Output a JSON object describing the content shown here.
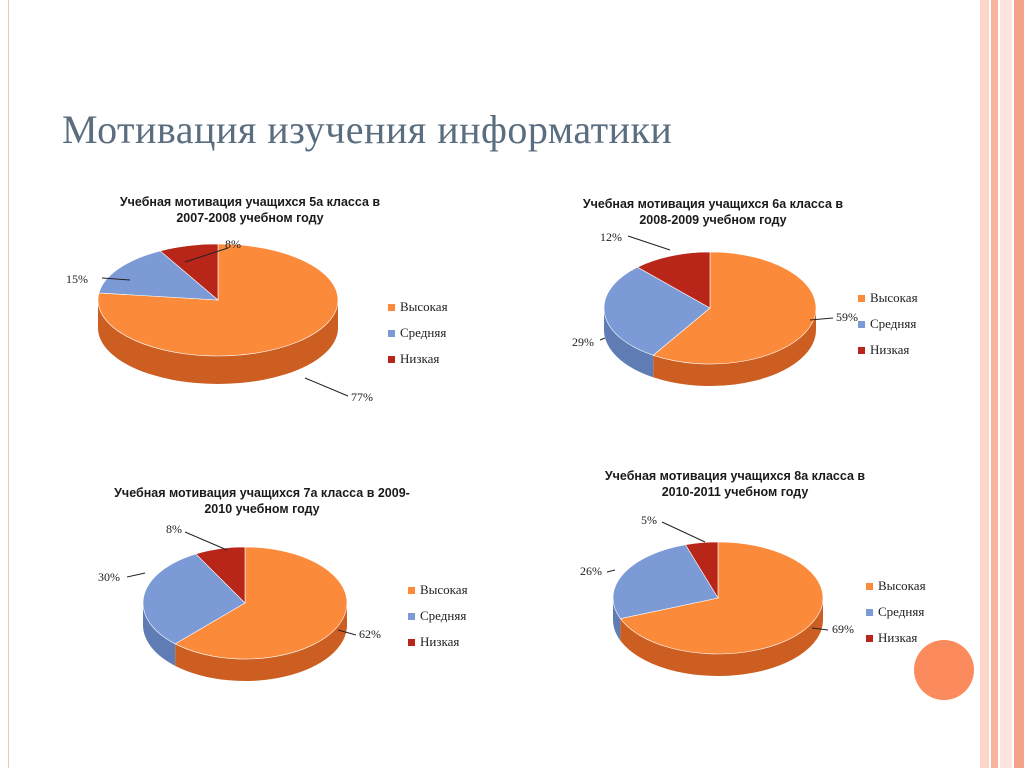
{
  "slide": {
    "title": "Мотивация изучения информатики"
  },
  "legend_labels": [
    "Высокая",
    "Средняя",
    "Низкая"
  ],
  "colors": {
    "side": [
      "#cc5e22",
      "#5f7cb4",
      "#8a1c12"
    ],
    "top": [
      "#fb8a3a",
      "#7c9ad6",
      "#b8261a"
    ],
    "stripes": [
      "#fbd6c9",
      "#f7b39c",
      "#fce5dc",
      "#f4a38a"
    ],
    "decor_circle": "#fb8a5c"
  },
  "chart_data": [
    {
      "type": "pie",
      "title": "Учебная мотивация учащихся 5а класса в 2007-2008 учебном году",
      "categories": [
        "Высокая",
        "Средняя",
        "Низкая"
      ],
      "values": [
        77,
        15,
        8
      ],
      "labels": [
        "77%",
        "15%",
        "8%"
      ],
      "legend": "right",
      "style": "3d"
    },
    {
      "type": "pie",
      "title": "Учебная мотивация учащихся  6а класса в 2008-2009 учебном году",
      "categories": [
        "Высокая",
        "Средняя",
        "Низкая"
      ],
      "values": [
        59,
        29,
        12
      ],
      "labels": [
        "59%",
        "29%",
        "12%"
      ],
      "legend": "right",
      "style": "3d"
    },
    {
      "type": "pie",
      "title": "Учебная мотивация учащихся  7а класса в 2009-2010 учебном году",
      "categories": [
        "Высокая",
        "Средняя",
        "Низкая"
      ],
      "values": [
        62,
        30,
        8
      ],
      "labels": [
        "62%",
        "30%",
        "8%"
      ],
      "legend": "right",
      "style": "3d"
    },
    {
      "type": "pie",
      "title": "Учебная мотивация учащихся  8а класса в 2010-2011 учебном году",
      "categories": [
        "Высокая",
        "Средняя",
        "Низкая"
      ],
      "values": [
        69,
        26,
        5
      ],
      "labels": [
        "69%",
        "26%",
        "5%"
      ],
      "legend": "right",
      "style": "3d"
    }
  ]
}
